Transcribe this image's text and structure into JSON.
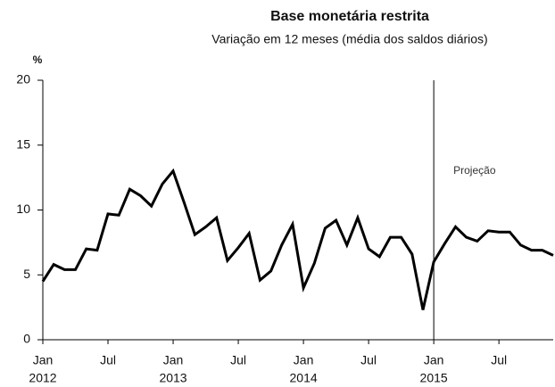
{
  "chart_data": {
    "type": "line",
    "title": "Base monetária restrita",
    "subtitle": "Variação em 12 meses (média dos saldos diários)",
    "y_label": "%",
    "categories": [
      "Jan",
      null,
      null,
      null,
      null,
      null,
      "Jul",
      null,
      null,
      null,
      null,
      null,
      "Jan",
      null,
      null,
      null,
      null,
      null,
      "Jul",
      null,
      null,
      null,
      null,
      null,
      "Jan",
      null,
      null,
      null,
      null,
      null,
      "Jul",
      null,
      null,
      null,
      null,
      null,
      "Jan",
      null,
      null,
      null,
      null,
      null,
      "Jul",
      null,
      null,
      null,
      null,
      null
    ],
    "years": [
      "2012",
      "2013",
      "2014",
      "2015"
    ],
    "series": [
      {
        "name": "Base monetária restrita",
        "color": "#000000",
        "values": [
          4.5,
          5.8,
          5.4,
          5.4,
          7.0,
          6.9,
          9.7,
          9.6,
          11.6,
          11.1,
          10.3,
          12.0,
          13.0,
          10.6,
          8.1,
          8.7,
          9.4,
          6.1,
          7.1,
          8.2,
          4.6,
          5.3,
          7.3,
          8.9,
          4.0,
          5.9,
          8.6,
          9.2,
          7.3,
          9.4,
          7.0,
          6.4,
          7.9,
          7.9,
          6.6,
          2.3,
          6.0,
          7.4,
          8.7,
          7.9,
          7.6,
          8.4,
          8.3,
          8.3,
          7.3,
          6.9,
          6.9,
          6.5
        ]
      }
    ],
    "ylim": [
      0,
      20
    ],
    "yticks": [
      0,
      5,
      10,
      15,
      20
    ],
    "annotations": [
      {
        "text": "Projeção",
        "x": 36
      }
    ]
  }
}
